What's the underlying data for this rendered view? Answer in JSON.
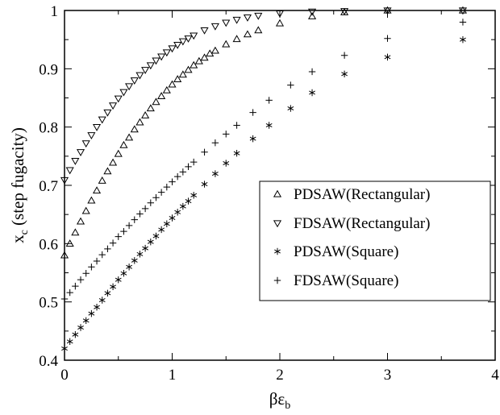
{
  "chart_data": {
    "type": "scatter",
    "title": "",
    "xlabel": "βε",
    "xlabel_sub": "b",
    "ylabel": "x",
    "ylabel_sub": "c",
    "ylabel_rest": " (step fugacity)",
    "xlim": [
      0,
      4
    ],
    "ylim": [
      0.4,
      1.0
    ],
    "xticks": [
      0,
      1,
      2,
      3,
      4
    ],
    "xtick_labels": [
      "0",
      "1",
      "2",
      "3",
      "4"
    ],
    "yticks": [
      0.4,
      0.5,
      0.6,
      0.7,
      0.8,
      0.9,
      1.0
    ],
    "ytick_labels": [
      "0.4",
      "0.5",
      "0.6",
      "0.7",
      "0.8",
      "0.9",
      "1"
    ],
    "grid": false,
    "legend_position": "center-right",
    "series": [
      {
        "name": "PDSAW(Rectangular)",
        "marker": "triangle-up",
        "x": [
          0,
          0.05,
          0.1,
          0.15,
          0.2,
          0.25,
          0.3,
          0.35,
          0.4,
          0.45,
          0.5,
          0.55,
          0.6,
          0.65,
          0.7,
          0.75,
          0.8,
          0.85,
          0.9,
          0.95,
          1.0,
          1.05,
          1.1,
          1.15,
          1.2,
          1.25,
          1.3,
          1.35,
          1.4,
          1.5,
          1.6,
          1.7,
          1.8,
          2.0,
          2.3,
          2.6,
          3.0,
          3.7
        ],
        "values": [
          0.58,
          0.6,
          0.619,
          0.638,
          0.656,
          0.674,
          0.691,
          0.708,
          0.724,
          0.739,
          0.754,
          0.769,
          0.782,
          0.796,
          0.808,
          0.82,
          0.832,
          0.843,
          0.853,
          0.863,
          0.873,
          0.882,
          0.89,
          0.898,
          0.906,
          0.913,
          0.919,
          0.926,
          0.931,
          0.942,
          0.951,
          0.959,
          0.966,
          0.978,
          0.99,
          0.997,
          1.0,
          1.0
        ]
      },
      {
        "name": "FDSAW(Rectangular)",
        "marker": "triangle-down",
        "x": [
          0,
          0.05,
          0.1,
          0.15,
          0.2,
          0.25,
          0.3,
          0.35,
          0.4,
          0.45,
          0.5,
          0.55,
          0.6,
          0.65,
          0.7,
          0.75,
          0.8,
          0.85,
          0.9,
          0.95,
          1.0,
          1.05,
          1.1,
          1.15,
          1.2,
          1.3,
          1.4,
          1.5,
          1.6,
          1.7,
          1.8,
          2.0,
          2.3,
          2.6,
          3.0,
          3.7
        ],
        "values": [
          0.709,
          0.726,
          0.742,
          0.757,
          0.772,
          0.786,
          0.8,
          0.813,
          0.825,
          0.837,
          0.849,
          0.86,
          0.87,
          0.88,
          0.889,
          0.898,
          0.906,
          0.914,
          0.921,
          0.928,
          0.935,
          0.941,
          0.947,
          0.952,
          0.957,
          0.966,
          0.973,
          0.979,
          0.984,
          0.988,
          0.991,
          0.995,
          0.998,
          0.999,
          1.0,
          1.0
        ]
      },
      {
        "name": "PDSAW(Square)",
        "marker": "asterisk",
        "x": [
          0,
          0.05,
          0.1,
          0.15,
          0.2,
          0.25,
          0.3,
          0.35,
          0.4,
          0.45,
          0.5,
          0.55,
          0.6,
          0.65,
          0.7,
          0.75,
          0.8,
          0.85,
          0.9,
          0.95,
          1.0,
          1.05,
          1.1,
          1.15,
          1.2,
          1.3,
          1.4,
          1.5,
          1.6,
          1.75,
          1.9,
          2.1,
          2.3,
          2.6,
          3.0,
          3.7
        ],
        "values": [
          0.42,
          0.432,
          0.444,
          0.456,
          0.468,
          0.48,
          0.491,
          0.503,
          0.515,
          0.526,
          0.538,
          0.549,
          0.56,
          0.571,
          0.582,
          0.592,
          0.603,
          0.613,
          0.624,
          0.634,
          0.644,
          0.654,
          0.664,
          0.673,
          0.683,
          0.702,
          0.72,
          0.738,
          0.755,
          0.78,
          0.803,
          0.832,
          0.859,
          0.891,
          0.92,
          0.95
        ]
      },
      {
        "name": "FDSAW(Square)",
        "marker": "plus",
        "x": [
          0,
          0.05,
          0.1,
          0.15,
          0.2,
          0.25,
          0.3,
          0.35,
          0.4,
          0.45,
          0.5,
          0.55,
          0.6,
          0.65,
          0.7,
          0.75,
          0.8,
          0.85,
          0.9,
          0.95,
          1.0,
          1.05,
          1.1,
          1.15,
          1.2,
          1.3,
          1.4,
          1.5,
          1.6,
          1.75,
          1.9,
          2.1,
          2.3,
          2.6,
          3.0,
          3.7
        ],
        "values": [
          0.505,
          0.516,
          0.527,
          0.538,
          0.549,
          0.56,
          0.57,
          0.581,
          0.591,
          0.601,
          0.612,
          0.621,
          0.631,
          0.641,
          0.651,
          0.66,
          0.67,
          0.679,
          0.688,
          0.697,
          0.706,
          0.715,
          0.723,
          0.732,
          0.74,
          0.757,
          0.773,
          0.788,
          0.803,
          0.825,
          0.846,
          0.872,
          0.895,
          0.923,
          0.952,
          0.98
        ]
      }
    ]
  }
}
